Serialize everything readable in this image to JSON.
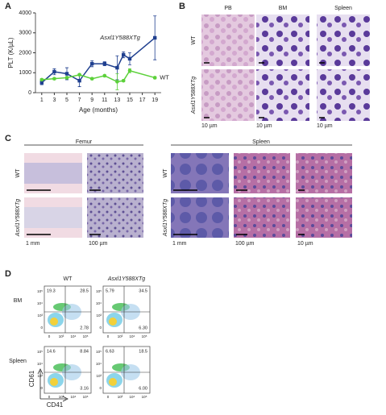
{
  "chart_data": {
    "type": "line",
    "panel": "A",
    "xlabel": "Age (months)",
    "ylabel": "PLT (K/µL)",
    "x": [
      1,
      3,
      5,
      7,
      9,
      11,
      13,
      14,
      15,
      19
    ],
    "xlim": [
      0,
      20
    ],
    "xticks": [
      1,
      3,
      5,
      7,
      9,
      11,
      13,
      15,
      17,
      19
    ],
    "ylim": [
      0,
      4000
    ],
    "yticks": [
      0,
      1000,
      2000,
      3000,
      4000
    ],
    "series": [
      {
        "name": "Asxl1Y588XTg",
        "color": "#1f3f8f",
        "marker": "square",
        "values": [
          500,
          1050,
          950,
          600,
          1450,
          1450,
          1250,
          1900,
          1700,
          2750
        ],
        "errors": [
          100,
          150,
          300,
          300,
          150,
          100,
          600,
          150,
          300,
          1100
        ]
      },
      {
        "name": "WT",
        "color": "#5cd13a",
        "marker": "circle",
        "values": [
          650,
          700,
          750,
          900,
          700,
          850,
          550,
          600,
          1100,
          750
        ],
        "errors": [
          50,
          50,
          50,
          50,
          50,
          50,
          400,
          50,
          100,
          50
        ]
      }
    ]
  },
  "panels": {
    "B": {
      "label": "B",
      "columns": [
        "PB",
        "BM",
        "Spleen"
      ],
      "rows": [
        "WT",
        "Asxl1Y588XTg"
      ],
      "scales": [
        "10 µm",
        "10 µm",
        "10 µm"
      ]
    },
    "C": {
      "label": "C",
      "femur": "Femur",
      "spleen": "Spleen",
      "rows": [
        "WT",
        "Asxl1Y588XTg"
      ],
      "femur_scales": [
        "1 mm",
        "100 µm"
      ],
      "spleen_scales": [
        "1 mm",
        "100 µm",
        "10 µm"
      ]
    },
    "D": {
      "label": "D",
      "columns": [
        "WT",
        "Asxl1Y588XTg"
      ],
      "rows": [
        "BM",
        "Spleen"
      ],
      "ylabel": "CD61",
      "xlabel": "CD41",
      "ticks": [
        "0",
        "10³",
        "10⁴",
        "10⁵"
      ],
      "quadrants": [
        [
          [
            "19.3",
            "28.5",
            "2.78"
          ],
          [
            "5.79",
            "34.5",
            "6.30"
          ]
        ],
        [
          [
            "14.6",
            "8.84",
            "3.16"
          ],
          [
            "6.63",
            "18.5",
            "6.00"
          ]
        ]
      ]
    }
  },
  "panel_a_label": "A"
}
